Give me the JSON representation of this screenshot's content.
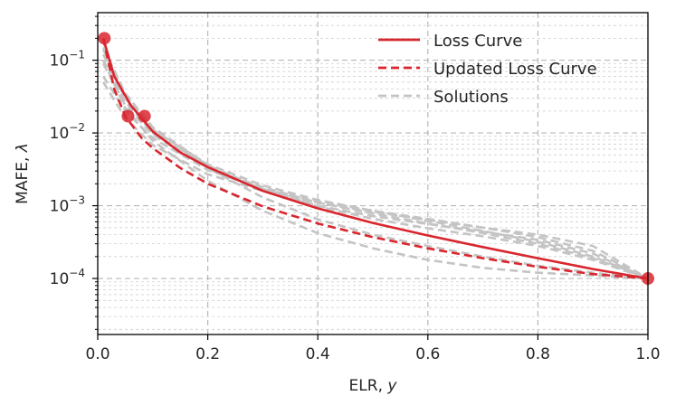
{
  "chart_data": {
    "type": "line",
    "xlabel": "ELR, ",
    "xlabel_var": "y",
    "ylabel": "MAFE, ",
    "ylabel_var": "λ",
    "xlim": [
      0.0,
      1.0
    ],
    "ylim": [
      1.7e-05,
      0.45
    ],
    "yscale": "log",
    "grid": true,
    "legend_position": "top-right",
    "x_ticks": [
      {
        "value": 0.0,
        "label": "0.0"
      },
      {
        "value": 0.2,
        "label": "0.2"
      },
      {
        "value": 0.4,
        "label": "0.4"
      },
      {
        "value": 0.6,
        "label": "0.6"
      },
      {
        "value": 0.8,
        "label": "0.8"
      },
      {
        "value": 1.0,
        "label": "1.0"
      }
    ],
    "y_ticks": [
      {
        "value": 0.1,
        "mantissa": "10",
        "exponent": "−1"
      },
      {
        "value": 0.01,
        "mantissa": "10",
        "exponent": "−2"
      },
      {
        "value": 0.001,
        "mantissa": "10",
        "exponent": "−3"
      },
      {
        "value": 0.0001,
        "mantissa": "10",
        "exponent": "−4"
      }
    ],
    "colors": {
      "loss": "#d9262e",
      "updated": "#d9262e",
      "solutions": "#c4c4c4",
      "grid": "#b8b8b8",
      "axis": "#000000"
    },
    "series": [
      {
        "name": "Loss Curve",
        "style": "solid",
        "x": [
          0.01,
          0.03,
          0.06,
          0.1,
          0.15,
          0.2,
          0.3,
          0.4,
          0.5,
          0.6,
          0.7,
          0.8,
          0.9,
          1.0
        ],
        "y": [
          0.2,
          0.06,
          0.024,
          0.0105,
          0.0054,
          0.0034,
          0.0016,
          0.00092,
          0.00058,
          0.00039,
          0.00027,
          0.00019,
          0.000135,
          0.0001
        ]
      },
      {
        "name": "Updated Loss Curve",
        "style": "dashed",
        "x": [
          0.01,
          0.03,
          0.05,
          0.08,
          0.1,
          0.15,
          0.2,
          0.3,
          0.4,
          0.5,
          0.6,
          0.7,
          0.8,
          0.9,
          1.0
        ],
        "y": [
          0.2,
          0.04,
          0.017,
          0.0085,
          0.0062,
          0.0033,
          0.002,
          0.00098,
          0.00057,
          0.00037,
          0.00026,
          0.00019,
          0.000145,
          0.000115,
          0.0001
        ]
      },
      {
        "name": "Solutions",
        "style": "dashed",
        "x": [],
        "y": []
      }
    ],
    "solution_curves": [
      {
        "x": [
          0.01,
          0.05,
          0.1,
          0.2,
          0.3,
          0.4,
          0.5,
          0.6,
          0.7,
          0.8,
          0.9,
          1.0
        ],
        "y": [
          0.12,
          0.03,
          0.011,
          0.0037,
          0.0019,
          0.0012,
          0.00085,
          0.00062,
          0.00045,
          0.00032,
          0.0002,
          0.0001
        ]
      },
      {
        "x": [
          0.01,
          0.05,
          0.1,
          0.2,
          0.3,
          0.4,
          0.5,
          0.6,
          0.7,
          0.8,
          0.9,
          1.0
        ],
        "y": [
          0.09,
          0.024,
          0.0095,
          0.0033,
          0.0018,
          0.0011,
          0.00078,
          0.00057,
          0.00042,
          0.0003,
          0.00019,
          0.0001
        ]
      },
      {
        "x": [
          0.01,
          0.05,
          0.1,
          0.2,
          0.3,
          0.4,
          0.5,
          0.6,
          0.7,
          0.8,
          0.9,
          1.0
        ],
        "y": [
          0.15,
          0.035,
          0.012,
          0.0036,
          0.0017,
          0.001,
          0.00072,
          0.00056,
          0.00044,
          0.00034,
          0.00022,
          0.0001
        ]
      },
      {
        "x": [
          0.01,
          0.05,
          0.1,
          0.2,
          0.3,
          0.4,
          0.5,
          0.6,
          0.7,
          0.8,
          0.9,
          1.0
        ],
        "y": [
          0.06,
          0.02,
          0.0085,
          0.0031,
          0.0017,
          0.00115,
          0.00085,
          0.00066,
          0.0005,
          0.00037,
          0.00024,
          0.0001
        ]
      },
      {
        "x": [
          0.01,
          0.05,
          0.1,
          0.2,
          0.3,
          0.4,
          0.5,
          0.6,
          0.7,
          0.8,
          0.9,
          1.0
        ],
        "y": [
          0.1,
          0.027,
          0.01,
          0.0034,
          0.0017,
          0.00098,
          0.00066,
          0.00049,
          0.00038,
          0.00028,
          0.00018,
          0.0001
        ]
      },
      {
        "x": [
          0.01,
          0.05,
          0.1,
          0.2,
          0.3,
          0.4,
          0.5,
          0.6,
          0.7,
          0.8,
          0.9,
          1.0
        ],
        "y": [
          0.14,
          0.033,
          0.0115,
          0.0033,
          0.0013,
          0.00065,
          0.0004,
          0.00028,
          0.0002,
          0.00015,
          0.00012,
          0.0001
        ]
      },
      {
        "x": [
          0.01,
          0.05,
          0.1,
          0.2,
          0.3,
          0.4,
          0.5,
          0.6,
          0.7,
          0.8,
          0.9,
          1.0
        ],
        "y": [
          0.1,
          0.022,
          0.0078,
          0.0022,
          0.00085,
          0.00042,
          0.00026,
          0.00018,
          0.00014,
          0.00012,
          0.00011,
          0.0001
        ]
      },
      {
        "x": [
          0.01,
          0.05,
          0.1,
          0.2,
          0.3,
          0.4,
          0.5,
          0.6,
          0.7,
          0.8,
          0.9,
          1.0
        ],
        "y": [
          0.05,
          0.016,
          0.0068,
          0.0027,
          0.0016,
          0.0011,
          0.00082,
          0.00064,
          0.0005,
          0.0004,
          0.00028,
          0.0001
        ]
      }
    ],
    "points": [
      {
        "x": 0.012,
        "y": 0.2
      },
      {
        "x": 0.055,
        "y": 0.017
      },
      {
        "x": 0.085,
        "y": 0.017
      },
      {
        "x": 1.0,
        "y": 0.0001
      }
    ]
  }
}
